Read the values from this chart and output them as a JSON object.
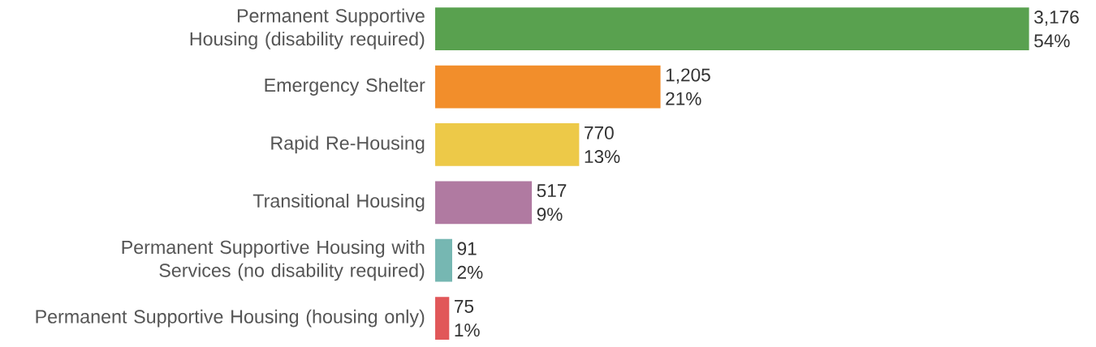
{
  "chart_data": {
    "type": "bar",
    "orientation": "horizontal",
    "categories": [
      "Permanent Supportive Housing (disability required)",
      "Emergency Shelter",
      "Rapid Re-Housing",
      "Transitional Housing",
      "Permanent Supportive Housing with Services (no disability required)",
      "Permanent Supportive Housing (housing only)"
    ],
    "values": [
      3176,
      1205,
      770,
      517,
      91,
      75
    ],
    "colors": [
      "#59a14f",
      "#f28e2b",
      "#edc948",
      "#b07aa1",
      "#76b7b2",
      "#e15759"
    ],
    "value_labels": [
      "3,176 54%",
      "1,205 21%",
      "770 13%",
      "517 9%",
      "91 2%",
      "75 1%"
    ],
    "tick_labels": "y"
  }
}
